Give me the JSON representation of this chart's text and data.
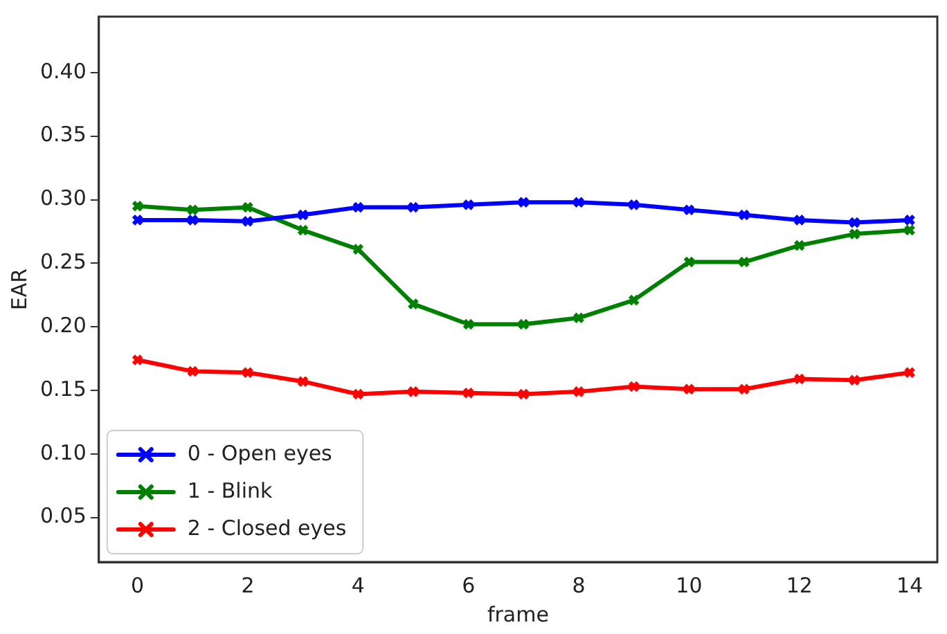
{
  "chart_data": {
    "type": "line",
    "xlabel": "frame",
    "ylabel": "EAR",
    "x": [
      0,
      1,
      2,
      3,
      4,
      5,
      6,
      7,
      8,
      9,
      10,
      11,
      12,
      13,
      14
    ],
    "series": [
      {
        "name": "0 - Open eyes",
        "color": "#0000ff",
        "values": [
          0.284,
          0.284,
          0.283,
          0.288,
          0.294,
          0.294,
          0.296,
          0.298,
          0.298,
          0.296,
          0.292,
          0.288,
          0.284,
          0.282,
          0.284
        ]
      },
      {
        "name": "1 - Blink",
        "color": "#008000",
        "values": [
          0.295,
          0.292,
          0.294,
          0.276,
          0.261,
          0.218,
          0.202,
          0.202,
          0.207,
          0.221,
          0.251,
          0.251,
          0.264,
          0.273,
          0.276
        ]
      },
      {
        "name": "2 - Closed eyes",
        "color": "#ff0000",
        "values": [
          0.174,
          0.165,
          0.164,
          0.157,
          0.147,
          0.149,
          0.148,
          0.147,
          0.149,
          0.153,
          0.151,
          0.151,
          0.159,
          0.158,
          0.164
        ]
      }
    ],
    "xlim": [
      -0.7,
      14.5
    ],
    "xticks": [
      0,
      2,
      4,
      6,
      8,
      10,
      12,
      14
    ],
    "ylim": [
      0.015,
      0.444
    ],
    "yticks": [
      0.05,
      {
        "value": 0.1,
        "label": "0.10"
      },
      0.15,
      {
        "value": 0.2,
        "label": "0.20"
      },
      0.25,
      {
        "value": 0.3,
        "label": "0.30"
      },
      0.35,
      {
        "value": 0.4,
        "label": "0.40"
      }
    ],
    "grid": false,
    "legend": "bottom left",
    "marker": "cross",
    "line_style": "solid"
  }
}
